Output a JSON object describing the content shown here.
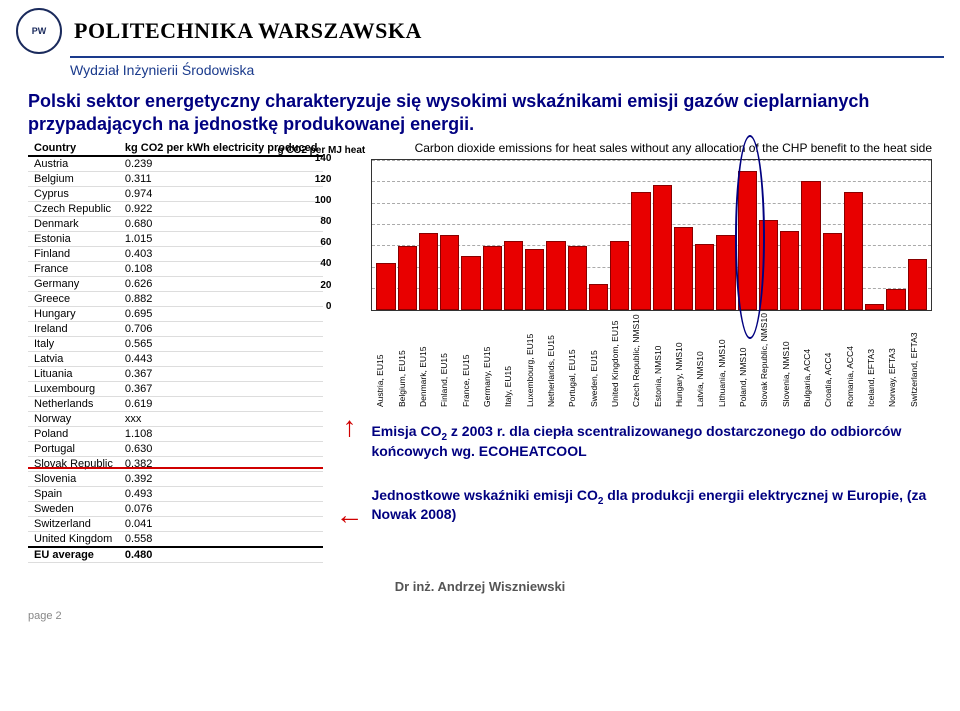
{
  "header": {
    "university": "POLITECHNIKA WARSZAWSKA",
    "department": "Wydział Inżynierii Środowiska"
  },
  "heading": "Polski sektor energetyczny charakteryzuje się wysokimi wskaźnikami emisji gazów cieplarnianych przypadających na jednostkę produkowanej energii.",
  "table": {
    "col1": "Country",
    "col2": "kg CO2 per kWh electricity produced",
    "rows": [
      [
        "Austria",
        "0.239"
      ],
      [
        "Belgium",
        "0.311"
      ],
      [
        "Cyprus",
        "0.974"
      ],
      [
        "Czech Republic",
        "0.922"
      ],
      [
        "Denmark",
        "0.680"
      ],
      [
        "Estonia",
        "1.015"
      ],
      [
        "Finland",
        "0.403"
      ],
      [
        "France",
        "0.108"
      ],
      [
        "Germany",
        "0.626"
      ],
      [
        "Greece",
        "0.882"
      ],
      [
        "Hungary",
        "0.695"
      ],
      [
        "Ireland",
        "0.706"
      ],
      [
        "Italy",
        "0.565"
      ],
      [
        "Latvia",
        "0.443"
      ],
      [
        "Lituania",
        "0.367"
      ],
      [
        "Luxembourg",
        "0.367"
      ],
      [
        "Netherlands",
        "0.619"
      ],
      [
        "Norway",
        "xxx"
      ],
      [
        "Poland",
        "1.108"
      ],
      [
        "Portugal",
        "0.630"
      ],
      [
        "Slovak Republic",
        "0.382"
      ],
      [
        "Slovenia",
        "0.392"
      ],
      [
        "Spain",
        "0.493"
      ],
      [
        "Sweden",
        "0.076"
      ],
      [
        "Switzerland",
        "0.041"
      ],
      [
        "United Kingdom",
        "0.558"
      ],
      [
        "EU average",
        "0.480"
      ]
    ]
  },
  "chart": {
    "title": "Carbon dioxide emissions for heat sales without any allocation of the CHP benefit to the heat side",
    "ylabel": "g CO2 per MJ heat",
    "ymax": 140,
    "yticks": [
      "140",
      "120",
      "100",
      "80",
      "60",
      "40",
      "20",
      "0"
    ],
    "bars": [
      {
        "l": "Austria, EU15",
        "v": 42
      },
      {
        "l": "Belgium, EU15",
        "v": 58
      },
      {
        "l": "Denmark, EU15",
        "v": 70
      },
      {
        "l": "Finland, EU15",
        "v": 68
      },
      {
        "l": "France, EU15",
        "v": 48
      },
      {
        "l": "Germany, EU15",
        "v": 58
      },
      {
        "l": "Italy, EU15",
        "v": 62
      },
      {
        "l": "Luxembourg, EU15",
        "v": 55
      },
      {
        "l": "Netherlands, EU15",
        "v": 62
      },
      {
        "l": "Portugal, EU15",
        "v": 58
      },
      {
        "l": "Sweden, EU15",
        "v": 22
      },
      {
        "l": "United Kingdom, EU15",
        "v": 62
      },
      {
        "l": "Czech Republic, NMS10",
        "v": 108
      },
      {
        "l": "Estonia, NMS10",
        "v": 115
      },
      {
        "l": "Hungary, NMS10",
        "v": 75
      },
      {
        "l": "Latvia, NMS10",
        "v": 60
      },
      {
        "l": "Lithuania, NMS10",
        "v": 68
      },
      {
        "l": "Poland, NMS10",
        "v": 128
      },
      {
        "l": "Slovak Republic, NMS10",
        "v": 82
      },
      {
        "l": "Slovenia, NMS10",
        "v": 72
      },
      {
        "l": "Bulgaria, ACC4",
        "v": 118
      },
      {
        "l": "Croatia, ACC4",
        "v": 70
      },
      {
        "l": "Romania, ACC4",
        "v": 108
      },
      {
        "l": "Iceland, EFTA3",
        "v": 4
      },
      {
        "l": "Norway, EFTA3",
        "v": 18
      },
      {
        "l": "Switzerland, EFTA3",
        "v": 46
      }
    ],
    "highlight_index": 17
  },
  "caption1": "Emisja CO",
  "caption1b": " z 2003 r. dla ciepła scentralizowanego dostarczonego do odbiorców końcowych wg. ECOHEATCOOL",
  "caption2": "Jednostkowe wskaźniki emisji CO",
  "caption2b": " dla produkcji energii elektrycznej w Europie, (za Nowak 2008)",
  "footer": "Dr inż. Andrzej Wiszniewski",
  "page": "page 2"
}
